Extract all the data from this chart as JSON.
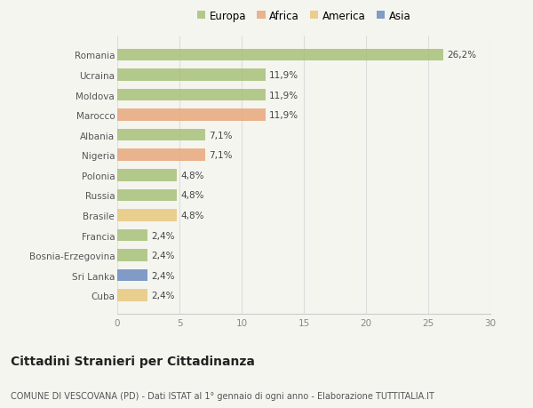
{
  "countries": [
    "Romania",
    "Ucraina",
    "Moldova",
    "Marocco",
    "Albania",
    "Nigeria",
    "Polonia",
    "Russia",
    "Brasile",
    "Francia",
    "Bosnia-Erzegovina",
    "Sri Lanka",
    "Cuba"
  ],
  "values": [
    26.2,
    11.9,
    11.9,
    11.9,
    7.1,
    7.1,
    4.8,
    4.8,
    4.8,
    2.4,
    2.4,
    2.4,
    2.4
  ],
  "continents": [
    "Europa",
    "Europa",
    "Europa",
    "Africa",
    "Europa",
    "Africa",
    "Europa",
    "Europa",
    "America",
    "Europa",
    "Europa",
    "Asia",
    "America"
  ],
  "colors": {
    "Europa": "#a8c07a",
    "Africa": "#e8a87c",
    "America": "#e8c87c",
    "Asia": "#6b8cbf"
  },
  "legend_order": [
    "Europa",
    "Africa",
    "America",
    "Asia"
  ],
  "xlim": [
    0,
    30
  ],
  "xticks": [
    0,
    5,
    10,
    15,
    20,
    25,
    30
  ],
  "title": "Cittadini Stranieri per Cittadinanza",
  "subtitle": "COMUNE DI VESCOVANA (PD) - Dati ISTAT al 1° gennaio di ogni anno - Elaborazione TUTTITALIA.IT",
  "bg_color": "#f5f5f0",
  "label_fontsize": 7.5,
  "value_fontsize": 7.5,
  "title_fontsize": 10,
  "subtitle_fontsize": 7
}
